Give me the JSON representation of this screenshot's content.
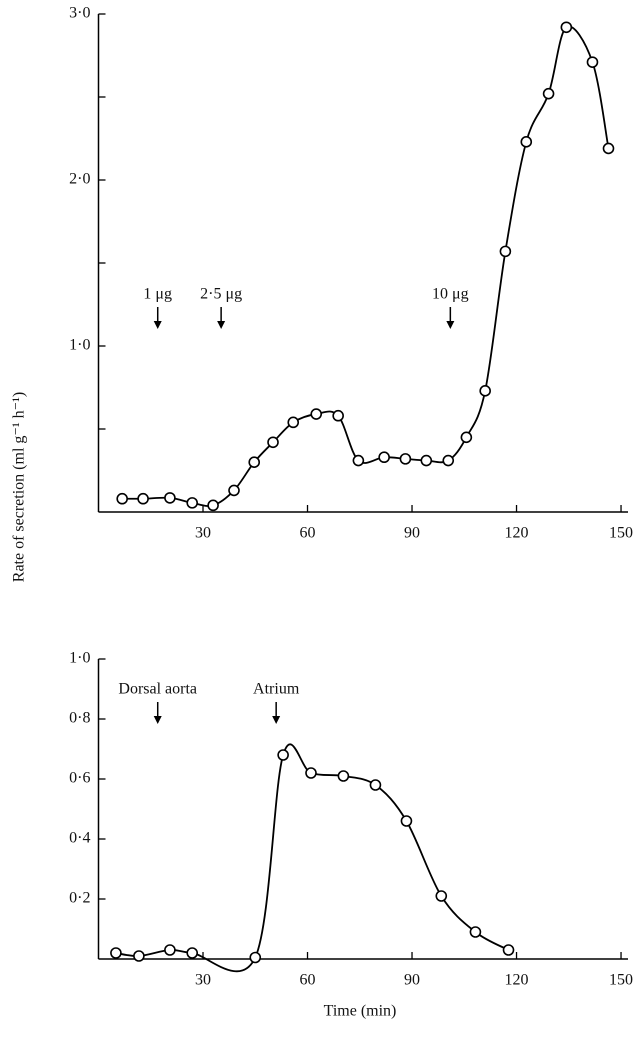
{
  "chart_data": [
    {
      "type": "line",
      "ylabel": "Rate of secretion (ml g⁻¹ h⁻¹)",
      "x": [
        6.8,
        12.8,
        20.5,
        26.9,
        32.9,
        38.9,
        44.7,
        50.1,
        55.9,
        62.5,
        68.8,
        74.6,
        82,
        88.1,
        94.1,
        100.4,
        105.6,
        111,
        116.8,
        122.8,
        129.2,
        134.3,
        141.8,
        146.4
      ],
      "values": [
        0.08,
        0.08,
        0.085,
        0.055,
        0.04,
        0.13,
        0.3,
        0.42,
        0.54,
        0.59,
        0.58,
        0.31,
        0.33,
        0.32,
        0.31,
        0.31,
        0.45,
        0.73,
        1.57,
        2.23,
        2.52,
        2.92,
        2.71,
        2.19
      ],
      "color": "#000000",
      "xlim": [
        0,
        152
      ],
      "xticks": [
        30,
        60,
        90,
        120,
        150
      ],
      "ylim": [
        0,
        3.0
      ],
      "yticks": [
        {
          "value": 1,
          "label": "1·0"
        },
        {
          "value": 2,
          "label": "2·0"
        },
        {
          "value": 3,
          "label": "3·0"
        }
      ],
      "minor_yticks": [
        0.5,
        1.5,
        2.5
      ],
      "annotations": [
        {
          "text": "1 μg",
          "x": 17
        },
        {
          "text": "2·5 μg",
          "x": 35.2
        },
        {
          "text": "10 μg",
          "x": 101
        }
      ]
    },
    {
      "type": "line",
      "xlabel": "Time (min)",
      "x": [
        5,
        11.6,
        20.5,
        26.9,
        45,
        53,
        61,
        70.3,
        79.5,
        88.4,
        98.4,
        108.2,
        117.7
      ],
      "values": [
        0.02,
        0.01,
        0.03,
        0.02,
        0.005,
        0.68,
        0.62,
        0.61,
        0.58,
        0.46,
        0.21,
        0.09,
        0.03
      ],
      "color": "#000000",
      "xlim": [
        0,
        152
      ],
      "xticks": [
        30,
        60,
        90,
        120,
        150
      ],
      "ylim": [
        0,
        1.0
      ],
      "yticks": [
        {
          "value": 0.2,
          "label": "0·2"
        },
        {
          "value": 0.4,
          "label": "0·4"
        },
        {
          "value": 0.6,
          "label": "0·6"
        },
        {
          "value": 0.8,
          "label": "0·8"
        },
        {
          "value": 1,
          "label": "1·0"
        }
      ],
      "annotations": [
        {
          "text": "Dorsal aorta",
          "x": 17
        },
        {
          "text": "Atrium",
          "x": 51
        }
      ]
    }
  ]
}
